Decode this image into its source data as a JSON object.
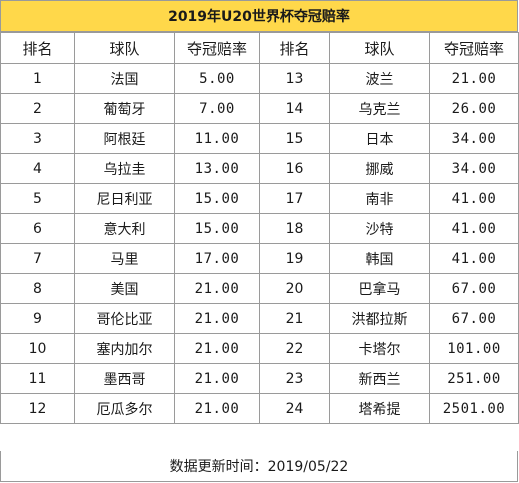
{
  "title": "2019年U20世界杯夺冠赔率",
  "headers": [
    "排名",
    "球队",
    "夺冠赔率",
    "排名",
    "球队",
    "夺冠赔率"
  ],
  "rows": [
    {
      "rank1": "1",
      "team1": "法国",
      "odds1": "5.00",
      "rank2": "13",
      "team2": "波兰",
      "odds2": "21.00"
    },
    {
      "rank1": "2",
      "team1": "葡萄牙",
      "odds1": "7.00",
      "rank2": "14",
      "team2": "乌克兰",
      "odds2": "26.00"
    },
    {
      "rank1": "3",
      "team1": "阿根廷",
      "odds1": "11.00",
      "rank2": "15",
      "team2": "日本",
      "odds2": "34.00"
    },
    {
      "rank1": "4",
      "team1": "乌拉圭",
      "odds1": "13.00",
      "rank2": "16",
      "team2": "挪威",
      "odds2": "34.00"
    },
    {
      "rank1": "5",
      "team1": "尼日利亚",
      "odds1": "15.00",
      "rank2": "17",
      "team2": "南非",
      "odds2": "41.00"
    },
    {
      "rank1": "6",
      "team1": "意大利",
      "odds1": "15.00",
      "rank2": "18",
      "team2": "沙特",
      "odds2": "41.00"
    },
    {
      "rank1": "7",
      "team1": "马里",
      "odds1": "17.00",
      "rank2": "19",
      "team2": "韩国",
      "odds2": "41.00"
    },
    {
      "rank1": "8",
      "team1": "美国",
      "odds1": "21.00",
      "rank2": "20",
      "team2": "巴拿马",
      "odds2": "67.00"
    },
    {
      "rank1": "9",
      "team1": "哥伦比亚",
      "odds1": "21.00",
      "rank2": "21",
      "team2": "洪都拉斯",
      "odds2": "67.00"
    },
    {
      "rank1": "10",
      "team1": "塞内加尔",
      "odds1": "21.00",
      "rank2": "22",
      "team2": "卡塔尔",
      "odds2": "101.00"
    },
    {
      "rank1": "11",
      "team1": "墨西哥",
      "odds1": "21.00",
      "rank2": "23",
      "team2": "新西兰",
      "odds2": "251.00"
    },
    {
      "rank1": "12",
      "team1": "厄瓜多尔",
      "odds1": "21.00",
      "rank2": "24",
      "team2": "塔希提",
      "odds2": "2501.00"
    }
  ],
  "footer": "数据更新时间：2019/05/22"
}
